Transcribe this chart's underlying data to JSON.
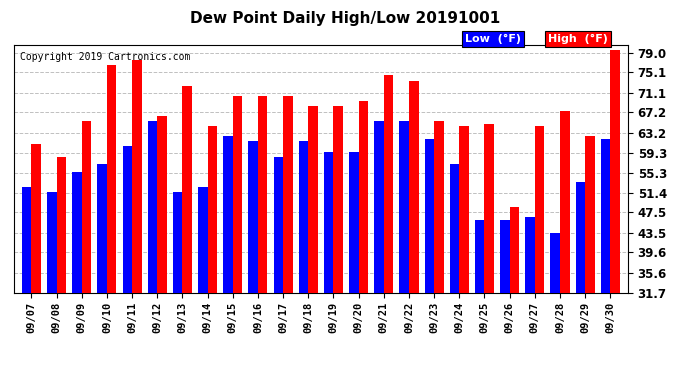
{
  "title": "Dew Point Daily High/Low 20191001",
  "copyright": "Copyright 2019 Cartronics.com",
  "dates": [
    "09/07",
    "09/08",
    "09/09",
    "09/10",
    "09/11",
    "09/12",
    "09/13",
    "09/14",
    "09/15",
    "09/16",
    "09/17",
    "09/18",
    "09/19",
    "09/20",
    "09/21",
    "09/22",
    "09/23",
    "09/24",
    "09/25",
    "09/26",
    "09/27",
    "09/28",
    "09/29",
    "09/30"
  ],
  "high": [
    61.0,
    58.5,
    65.5,
    76.5,
    77.5,
    66.5,
    72.5,
    64.5,
    70.5,
    70.5,
    70.5,
    68.5,
    68.5,
    69.5,
    74.5,
    73.5,
    65.5,
    64.5,
    65.0,
    48.5,
    64.5,
    67.5,
    62.5,
    79.5
  ],
  "low": [
    52.5,
    51.5,
    55.5,
    57.0,
    60.5,
    65.5,
    51.5,
    52.5,
    62.5,
    61.5,
    58.5,
    61.5,
    59.5,
    59.5,
    65.5,
    65.5,
    62.0,
    57.0,
    46.0,
    46.0,
    46.5,
    43.5,
    53.5,
    62.0
  ],
  "high_color": "#ff0000",
  "low_color": "#0000ff",
  "bg_color": "#ffffff",
  "grid_color": "#c0c0c0",
  "yticks": [
    31.7,
    35.6,
    39.6,
    43.5,
    47.5,
    51.4,
    55.3,
    59.3,
    63.2,
    67.2,
    71.1,
    75.1,
    79.0
  ],
  "ymin": 31.7,
  "ymax": 80.5,
  "bar_width": 0.38
}
